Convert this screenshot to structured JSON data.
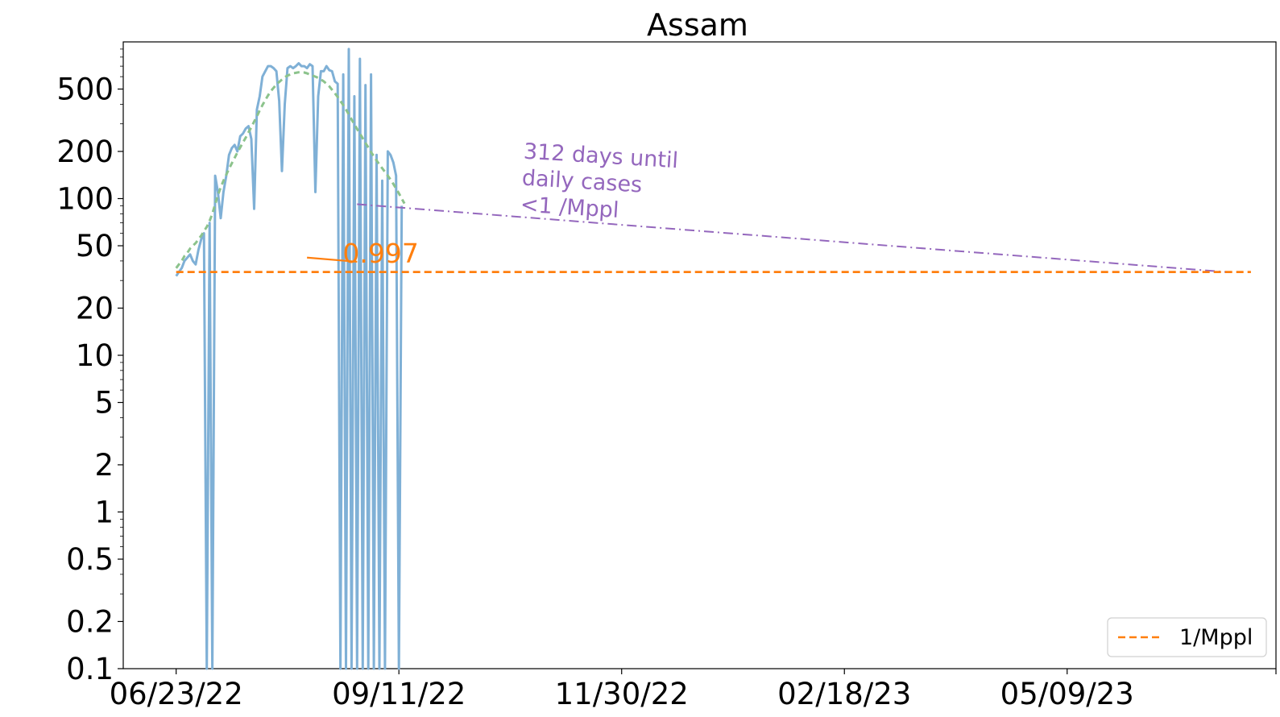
{
  "chart_data": {
    "type": "line",
    "title": "Assam",
    "xlabel": "",
    "ylabel": "",
    "yscale": "log",
    "ylim": [
      0.1,
      1000
    ],
    "xlim": [
      "2022-06-04",
      "2023-07-23"
    ],
    "grid": false,
    "legend_position": "bottom-right",
    "x_tick_labels": [
      "06/23/22",
      "09/11/22",
      "11/30/22",
      "02/18/23",
      "05/09/23"
    ],
    "x_tick_dates": [
      "2022-06-23",
      "2022-09-11",
      "2022-11-30",
      "2023-02-18",
      "2023-05-09"
    ],
    "y_ticks": [
      0.1,
      0.2,
      0.5,
      1,
      2,
      5,
      10,
      20,
      50,
      100,
      200,
      500
    ],
    "y_tick_labels": [
      "0.1",
      "0.2",
      "0.5",
      "1",
      "2",
      "5",
      "10",
      "20",
      "50",
      "100",
      "200",
      "500"
    ],
    "series": [
      {
        "name": "",
        "style": "solid",
        "color": "#7fb0d6",
        "start": "2022-06-23",
        "values": [
          32,
          34,
          36,
          40,
          42,
          44,
          40,
          38,
          47,
          55,
          60,
          0.1,
          70,
          0.1,
          140,
          110,
          75,
          110,
          140,
          190,
          210,
          220,
          200,
          250,
          260,
          280,
          290,
          240,
          86,
          370,
          450,
          600,
          650,
          700,
          700,
          680,
          650,
          420,
          150,
          400,
          680,
          700,
          680,
          700,
          730,
          700,
          700,
          680,
          720,
          700,
          110,
          450,
          650,
          650,
          700,
          660,
          650,
          560,
          540,
          0.1,
          620,
          0.1,
          900,
          0.1,
          450,
          0.1,
          780,
          0.1,
          530,
          0.1,
          620,
          0.1,
          190,
          0.1,
          130,
          0.1,
          200,
          190,
          170,
          140,
          0.1,
          90
        ]
      },
      {
        "name": "",
        "style": "dashed",
        "color": "#8cc38c",
        "start": "2022-06-23",
        "values": [
          36,
          38,
          40,
          43,
          45,
          48,
          50,
          52,
          55,
          58,
          62,
          66,
          72,
          80,
          92,
          105,
          118,
          130,
          142,
          155,
          168,
          182,
          197,
          212,
          228,
          245,
          265,
          285,
          310,
          335,
          365,
          395,
          425,
          455,
          485,
          510,
          535,
          555,
          575,
          595,
          610,
          620,
          630,
          635,
          640,
          640,
          638,
          630,
          620,
          610,
          600,
          590,
          575,
          560,
          540,
          520,
          495,
          470,
          445,
          420,
          395,
          370,
          345,
          320,
          298,
          278,
          260,
          242,
          226,
          212,
          198,
          186,
          175,
          165,
          156,
          148,
          140,
          132,
          124,
          116,
          108,
          100,
          93
        ]
      },
      {
        "name": "",
        "style": "dashdot",
        "color": "#9467bd",
        "points": [
          [
            "2022-08-27",
            92
          ],
          [
            "2023-07-05",
            34
          ]
        ]
      },
      {
        "name": "1/Mppl",
        "style": "dashed",
        "color": "#ff7f0e",
        "points": [
          [
            "2022-06-23",
            34
          ],
          [
            "2023-07-14",
            34
          ]
        ]
      }
    ],
    "annotations": [
      {
        "text": "0.997",
        "color": "#ff7f0e"
      },
      {
        "text": "312 days until\ndaily cases\n<1 /Mppl",
        "color": "#9467bd"
      }
    ]
  }
}
